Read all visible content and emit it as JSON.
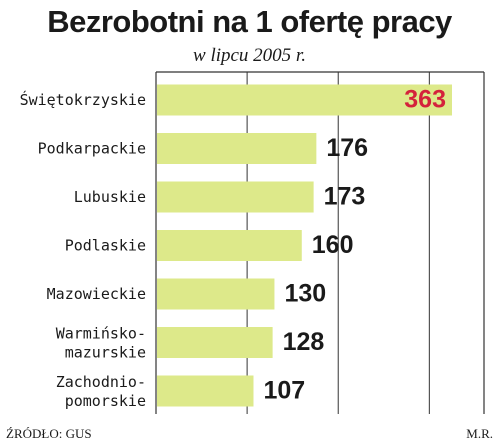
{
  "chart_data": {
    "type": "bar",
    "orientation": "horizontal",
    "title": "Bezrobotni na 1 ofertę pracy",
    "subtitle": "w lipcu 2005 r.",
    "categories": [
      [
        "Świętokrzyskie"
      ],
      [
        "Podkarpackie"
      ],
      [
        "Lubuskie"
      ],
      [
        "Podlaskie"
      ],
      [
        "Mazowieckie"
      ],
      [
        "Warmińsko-",
        "mazurskie"
      ],
      [
        "Zachodnio-",
        "pomorskie"
      ]
    ],
    "values": [
      363,
      176,
      173,
      160,
      130,
      128,
      107
    ],
    "highlight_index": 0,
    "xlim": [
      0,
      360
    ],
    "grid": true,
    "source": "ŹRÓDŁO: GUS",
    "author": "M.R."
  },
  "colors": {
    "bar": "#dde98a",
    "highlight_label": "#d4223b",
    "label": "#1a1a1a",
    "grid": "#333333"
  }
}
